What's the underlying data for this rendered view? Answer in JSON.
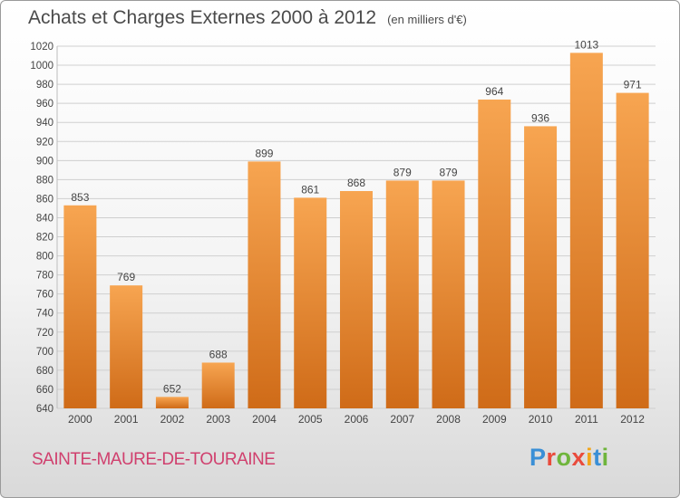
{
  "title": "Achats et Charges Externes 2000 à 2012",
  "unit": "(en milliers d'€)",
  "city": "SAINTE-MAURE-DE-TOURAINE",
  "logo": {
    "letters": [
      "P",
      "r",
      "o",
      "x",
      "i",
      "t",
      "i"
    ],
    "colors": [
      "#3a8fd6",
      "#e94b3c",
      "#6fb53c",
      "#e94b3c",
      "#f2a51a",
      "#3a8fd6",
      "#6fb53c"
    ]
  },
  "colors": {
    "bar_top": "#f7a551",
    "bar_bottom": "#cf6b18",
    "grid": "#cfcfcf",
    "text": "#444444"
  },
  "chart_data": {
    "type": "bar",
    "categories": [
      "2000",
      "2001",
      "2002",
      "2003",
      "2004",
      "2005",
      "2006",
      "2007",
      "2008",
      "2009",
      "2010",
      "2011",
      "2012"
    ],
    "values": [
      853,
      769,
      652,
      688,
      899,
      861,
      868,
      879,
      879,
      964,
      936,
      1013,
      971
    ],
    "ylim": [
      640,
      1020
    ],
    "yticks": [
      640,
      660,
      680,
      700,
      720,
      740,
      760,
      780,
      800,
      820,
      840,
      860,
      880,
      900,
      920,
      940,
      960,
      980,
      1000,
      1020
    ],
    "grid": true
  }
}
